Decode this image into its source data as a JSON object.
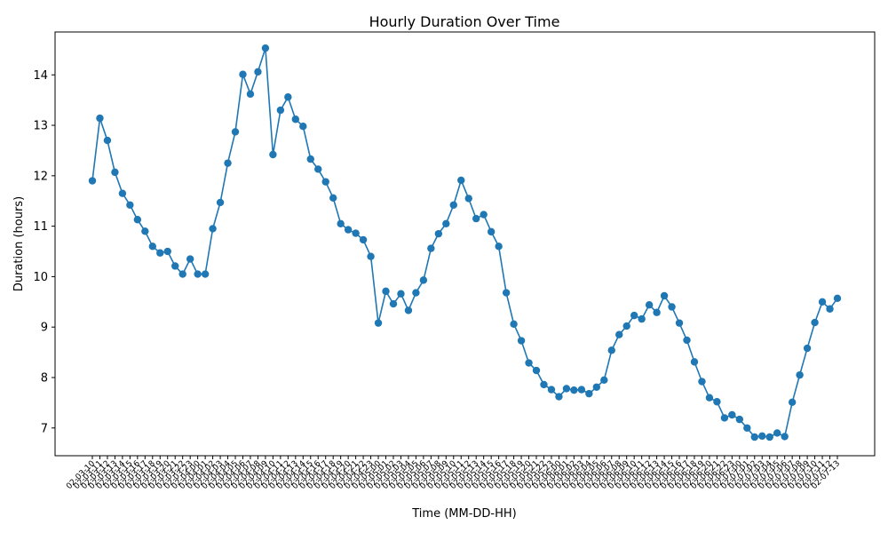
{
  "chart_data": {
    "type": "line",
    "title": "Hourly Duration Over Time",
    "xlabel": "Time (MM-DD-HH)",
    "ylabel": "Duration (hours)",
    "ylim": [
      6.45,
      14.85
    ],
    "yticks": [
      7,
      8,
      9,
      10,
      11,
      12,
      13,
      14
    ],
    "grid": false,
    "legend": "none",
    "series_color": "#1f77b4",
    "marker": "circle",
    "categories": [
      "02-03-10",
      "02-03-11",
      "02-03-12",
      "02-03-13",
      "02-03-14",
      "02-03-15",
      "02-03-16",
      "02-03-17",
      "02-03-18",
      "02-03-19",
      "02-03-20",
      "02-03-21",
      "02-03-22",
      "02-03-23",
      "02-04-00",
      "02-04-01",
      "02-04-02",
      "02-04-03",
      "02-04-04",
      "02-04-05",
      "02-04-06",
      "02-04-07",
      "02-04-08",
      "02-04-09",
      "02-04-10",
      "02-04-11",
      "02-04-12",
      "02-04-13",
      "02-04-14",
      "02-04-15",
      "02-04-16",
      "02-04-17",
      "02-04-18",
      "02-04-19",
      "02-04-20",
      "02-04-21",
      "02-04-22",
      "02-04-23",
      "02-05-00",
      "02-05-01",
      "02-05-02",
      "02-05-03",
      "02-05-04",
      "02-05-05",
      "02-05-06",
      "02-05-07",
      "02-05-08",
      "02-05-09",
      "02-05-10",
      "02-05-11",
      "02-05-12",
      "02-05-13",
      "02-05-14",
      "02-05-15",
      "02-05-16",
      "02-05-17",
      "02-05-18",
      "02-05-19",
      "02-05-20",
      "02-05-21",
      "02-05-22",
      "02-05-23",
      "02-06-00",
      "02-06-01",
      "02-06-02",
      "02-06-03",
      "02-06-04",
      "02-06-05",
      "02-06-06",
      "02-06-07",
      "02-06-08",
      "02-06-09",
      "02-06-10",
      "02-06-11",
      "02-06-12",
      "02-06-13",
      "02-06-14",
      "02-06-15",
      "02-06-16",
      "02-06-17",
      "02-06-18",
      "02-06-19",
      "02-06-20",
      "02-06-21",
      "02-06-22",
      "02-06-23",
      "02-07-00",
      "02-07-01",
      "02-07-02",
      "02-07-03",
      "02-07-04",
      "02-07-05",
      "02-07-06",
      "02-07-07",
      "02-07-08",
      "02-07-09",
      "02-07-10",
      "02-07-11",
      "02-07-12",
      "02-07-13"
    ],
    "values": [
      11.9,
      13.14,
      12.7,
      12.07,
      11.65,
      11.42,
      11.13,
      10.9,
      10.6,
      10.47,
      10.5,
      10.21,
      10.05,
      10.35,
      10.05,
      10.05,
      10.95,
      11.47,
      12.25,
      12.87,
      14.01,
      13.62,
      14.06,
      14.53,
      12.42,
      13.3,
      13.56,
      13.12,
      12.98,
      12.33,
      12.13,
      11.88,
      11.56,
      11.05,
      10.93,
      10.86,
      10.73,
      10.4,
      9.08,
      9.71,
      9.46,
      9.66,
      9.33,
      9.68,
      9.93,
      10.56,
      10.85,
      11.05,
      11.42,
      11.91,
      11.55,
      11.15,
      11.23,
      10.89,
      10.6,
      9.68,
      9.06,
      8.73,
      8.29,
      8.14,
      7.86,
      7.76,
      7.62,
      7.78,
      7.75,
      7.76,
      7.68,
      7.81,
      7.95,
      8.54,
      8.85,
      9.02,
      9.23,
      9.16,
      9.44,
      9.29,
      9.62,
      9.4,
      9.08,
      8.74,
      8.31,
      7.92,
      7.6,
      7.52,
      7.2,
      7.26,
      7.17,
      7.0,
      6.82,
      6.84,
      6.82,
      6.9,
      6.83,
      7.51,
      8.05,
      8.58,
      9.09,
      9.5,
      9.36,
      9.57
    ]
  }
}
